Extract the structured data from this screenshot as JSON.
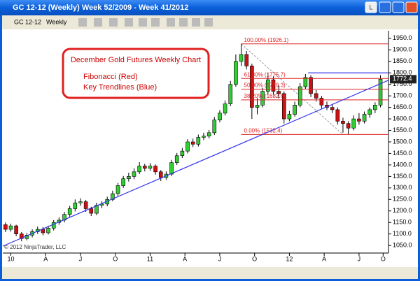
{
  "window": {
    "title": "GC 12-12 (Weekly)  Week 52/2009 - Week 41/2012",
    "badge": "L"
  },
  "toolbar": {
    "instrument": "GC 12-12",
    "interval": "Weekly"
  },
  "chart_data": {
    "type": "candlestick",
    "annotation": [
      "December Gold Futures Weekly Chart",
      "Fibonacci (Red)",
      "Key Trendlines (Blue)"
    ],
    "copyright": "© 2012 NinjaTrader, LLC",
    "up_color": "#33cc33",
    "down_color": "#cc1111",
    "x": [
      -2,
      0,
      2,
      4,
      6,
      8,
      10,
      12,
      14,
      16,
      18,
      20,
      22,
      24,
      26,
      28,
      30,
      32,
      34,
      36,
      38,
      40,
      42,
      44,
      46,
      48,
      50,
      52,
      54,
      56,
      58,
      60,
      62,
      64,
      66,
      68,
      70,
      72,
      74,
      76,
      78,
      80,
      82,
      84,
      86,
      88,
      90,
      92,
      94,
      96,
      98,
      100,
      102,
      104,
      106,
      108,
      110,
      112,
      114,
      116,
      118,
      120,
      122,
      124,
      126,
      128,
      130,
      132,
      134,
      136,
      138
    ],
    "open": [
      1140,
      1120,
      1135,
      1100,
      1080,
      1095,
      1110,
      1120,
      1105,
      1125,
      1150,
      1160,
      1185,
      1210,
      1235,
      1240,
      1210,
      1190,
      1225,
      1230,
      1250,
      1275,
      1310,
      1340,
      1350,
      1370,
      1395,
      1385,
      1395,
      1370,
      1345,
      1360,
      1410,
      1440,
      1460,
      1500,
      1490,
      1520,
      1525,
      1540,
      1595,
      1625,
      1665,
      1750,
      1850,
      1880,
      1830,
      1650,
      1660,
      1720,
      1770,
      1720,
      1710,
      1600,
      1620,
      1660,
      1740,
      1780,
      1710,
      1690,
      1660,
      1650,
      1640,
      1590,
      1580,
      1560,
      1600,
      1590,
      1620,
      1640,
      1660
    ],
    "high": [
      1150,
      1145,
      1140,
      1108,
      1105,
      1120,
      1132,
      1130,
      1136,
      1160,
      1172,
      1196,
      1222,
      1250,
      1255,
      1248,
      1218,
      1236,
      1242,
      1262,
      1288,
      1322,
      1352,
      1366,
      1385,
      1412,
      1405,
      1408,
      1402,
      1378,
      1372,
      1422,
      1452,
      1474,
      1512,
      1514,
      1532,
      1540,
      1552,
      1608,
      1638,
      1680,
      1765,
      1880,
      1926.1,
      1895,
      1840,
      1690,
      1735,
      1800,
      1785,
      1745,
      1720,
      1635,
      1675,
      1755,
      1795,
      1790,
      1725,
      1700,
      1675,
      1665,
      1650,
      1605,
      1590,
      1615,
      1625,
      1632,
      1650,
      1672,
      1790
    ],
    "low": [
      1108,
      1110,
      1090,
      1068,
      1072,
      1085,
      1100,
      1094,
      1098,
      1115,
      1140,
      1150,
      1175,
      1198,
      1222,
      1196,
      1178,
      1182,
      1212,
      1220,
      1242,
      1265,
      1300,
      1328,
      1338,
      1360,
      1372,
      1374,
      1358,
      1330,
      1335,
      1352,
      1400,
      1430,
      1450,
      1478,
      1480,
      1508,
      1515,
      1530,
      1585,
      1615,
      1655,
      1740,
      1830,
      1815,
      1600,
      1620,
      1650,
      1705,
      1705,
      1690,
      1580,
      1590,
      1610,
      1650,
      1728,
      1695,
      1675,
      1645,
      1638,
      1625,
      1575,
      1540,
      1532.4,
      1550,
      1575,
      1580,
      1605,
      1625,
      1650
    ],
    "close": [
      1120,
      1135,
      1100,
      1080,
      1095,
      1110,
      1120,
      1105,
      1125,
      1150,
      1160,
      1185,
      1210,
      1235,
      1240,
      1210,
      1190,
      1225,
      1230,
      1250,
      1275,
      1310,
      1340,
      1350,
      1370,
      1395,
      1385,
      1395,
      1370,
      1345,
      1360,
      1410,
      1440,
      1460,
      1500,
      1490,
      1520,
      1525,
      1540,
      1595,
      1625,
      1665,
      1750,
      1850,
      1880,
      1830,
      1650,
      1660,
      1720,
      1770,
      1720,
      1710,
      1600,
      1620,
      1660,
      1740,
      1780,
      1710,
      1690,
      1660,
      1650,
      1640,
      1590,
      1580,
      1560,
      1600,
      1590,
      1620,
      1640,
      1660,
      1772.4
    ],
    "fibonacci": {
      "color": "#dd2222",
      "x": [
        86,
        141
      ],
      "from": [
        86,
        124
      ],
      "levels": [
        {
          "value": 1926.1,
          "label": "100.00% (1926.1)"
        },
        {
          "value": 1775.7,
          "label": "61.80% (1775.7)"
        },
        {
          "value": 1729.3,
          "label": "50.00% (1729.3)"
        },
        {
          "value": 1682.8,
          "label": "38.20% (1682.8)"
        },
        {
          "value": 1532.4,
          "label": "0.00% (1532.4)"
        }
      ]
    },
    "trendlines": {
      "color": "#3333ee",
      "lines": [
        {
          "x": [
            -3,
            141
          ],
          "y": [
            1047,
            1768
          ]
        },
        {
          "x": [
            111,
            141
          ],
          "y": [
            1800,
            1800
          ]
        }
      ]
    },
    "xlim": [
      -3,
      141
    ],
    "ylim": [
      1017,
      1983
    ],
    "xticks": [
      {
        "value": 0,
        "label": "10"
      },
      {
        "value": 13,
        "label": "A"
      },
      {
        "value": 26,
        "label": "J"
      },
      {
        "value": 39,
        "label": "O"
      },
      {
        "value": 52,
        "label": "11"
      },
      {
        "value": 65,
        "label": "A"
      },
      {
        "value": 78,
        "label": "J"
      },
      {
        "value": 91,
        "label": "O"
      },
      {
        "value": 104,
        "label": "12"
      },
      {
        "value": 117,
        "label": "A"
      },
      {
        "value": 130,
        "label": "J"
      },
      {
        "value": 139,
        "label": "O"
      }
    ],
    "yticks": [
      {
        "value": 1050,
        "label": "1050.0"
      },
      {
        "value": 1100,
        "label": "1100.0"
      },
      {
        "value": 1150,
        "label": "1150.0"
      },
      {
        "value": 1200,
        "label": "1200.0"
      },
      {
        "value": 1250,
        "label": "1250.0"
      },
      {
        "value": 1300,
        "label": "1300.0"
      },
      {
        "value": 1350,
        "label": "1350.0"
      },
      {
        "value": 1400,
        "label": "1400.0"
      },
      {
        "value": 1450,
        "label": "1450.0"
      },
      {
        "value": 1500,
        "label": "1500.0"
      },
      {
        "value": 1550,
        "label": "1550.0"
      },
      {
        "value": 1600,
        "label": "1600.0"
      },
      {
        "value": 1650,
        "label": "1650.0"
      },
      {
        "value": 1700,
        "label": "1700.0"
      },
      {
        "value": 1750,
        "label": "1750.0"
      },
      {
        "value": 1800,
        "label": "1800.0"
      },
      {
        "value": 1850,
        "label": "1850.0"
      },
      {
        "value": 1900,
        "label": "1900.0"
      },
      {
        "value": 1950,
        "label": "1950.0"
      }
    ]
  }
}
